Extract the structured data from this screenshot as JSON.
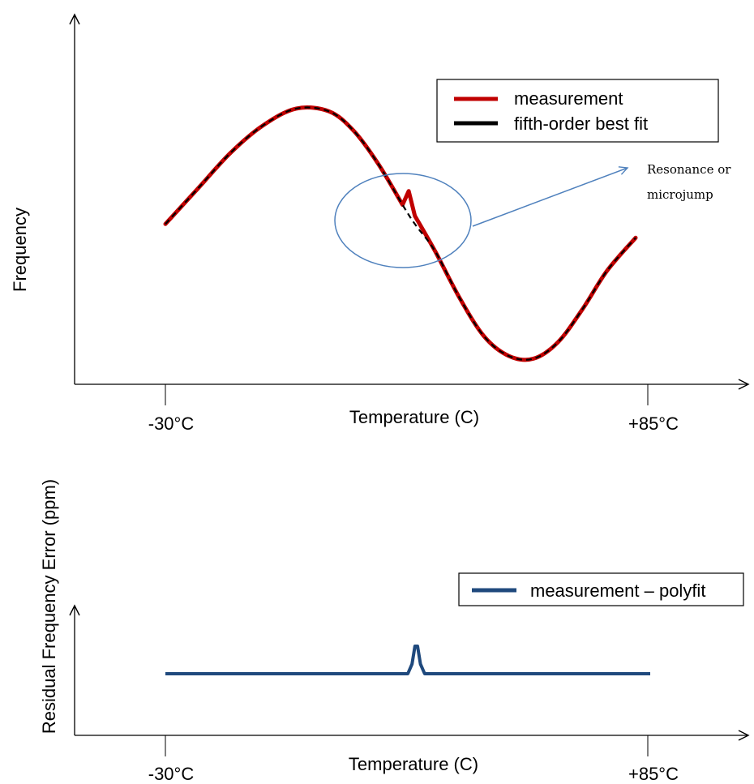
{
  "chart_data": [
    {
      "type": "line",
      "ylabel": "Frequency",
      "xlabel": "Temperature (C)",
      "x_ticks": [
        "-30°C",
        "+85°C"
      ],
      "xlim": [
        -30,
        85
      ],
      "y_ticks_shown": false,
      "grid": false,
      "legend_placement": "top-right",
      "series": [
        {
          "name": "measurement",
          "color": "#c00000",
          "x": [
            -30,
            -22,
            -14,
            -6,
            2,
            10,
            16,
            22,
            28,
            29.5,
            31,
            36,
            42,
            48,
            54,
            60,
            66,
            72,
            78,
            85
          ],
          "y": [
            0.53,
            0.66,
            0.79,
            0.89,
            0.95,
            0.94,
            0.87,
            0.75,
            0.6,
            0.65,
            0.56,
            0.43,
            0.26,
            0.12,
            0.05,
            0.04,
            0.1,
            0.22,
            0.36,
            0.48
          ]
        },
        {
          "name": "fifth-order best fit",
          "color": "#000000",
          "x": [
            -30,
            -22,
            -14,
            -6,
            2,
            10,
            16,
            22,
            28,
            31,
            36,
            42,
            48,
            54,
            60,
            66,
            72,
            78,
            85
          ],
          "y": [
            0.53,
            0.66,
            0.79,
            0.89,
            0.95,
            0.94,
            0.87,
            0.75,
            0.6,
            0.53,
            0.43,
            0.26,
            0.12,
            0.05,
            0.04,
            0.1,
            0.22,
            0.36,
            0.48
          ]
        }
      ],
      "annotations": [
        {
          "text_lines": [
            "Resonance or",
            "microjump"
          ],
          "target_x": 29.5
        }
      ]
    },
    {
      "type": "line",
      "ylabel": "Residual Frequency Error (ppm)",
      "xlabel": "Temperature (C)",
      "x_ticks": [
        "-30°C",
        "+85°C"
      ],
      "xlim": [
        -30,
        85
      ],
      "y_ticks_shown": false,
      "grid": false,
      "legend_placement": "top-right",
      "series": [
        {
          "name": "measurement – polyfit",
          "color": "#1f497d",
          "x": [
            -30,
            27.5,
            28.5,
            29.2,
            29.8,
            30.5,
            31.5,
            85
          ],
          "y": [
            0,
            0,
            0.35,
            1.0,
            1.0,
            0.35,
            0,
            0
          ]
        }
      ]
    }
  ]
}
